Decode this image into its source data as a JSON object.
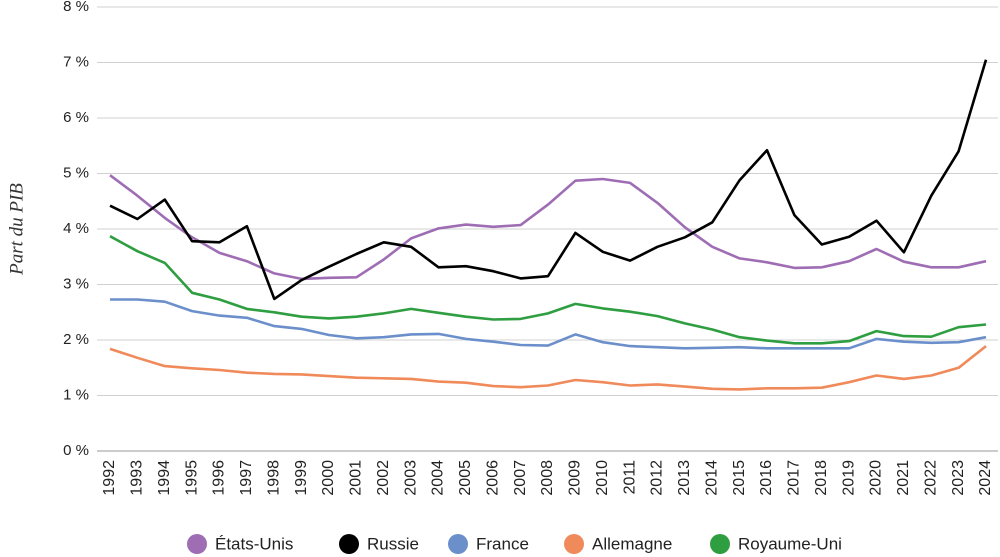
{
  "chart_data": {
    "type": "line",
    "y_label": "Part du PIB",
    "categories": [
      "1992",
      "1993",
      "1994",
      "1995",
      "1996",
      "1997",
      "1998",
      "1999",
      "2000",
      "2001",
      "2002",
      "2003",
      "2004",
      "2005",
      "2006",
      "2007",
      "2008",
      "2009",
      "2010",
      "2011",
      "2012",
      "2013",
      "2014",
      "2015",
      "2016",
      "2017",
      "2018",
      "2019",
      "2020",
      "2021",
      "2022",
      "2023",
      "2024"
    ],
    "ylim": [
      0,
      8
    ],
    "yticks": [
      {
        "value": 0,
        "label": "0 %"
      },
      {
        "value": 1,
        "label": "1 %"
      },
      {
        "value": 2,
        "label": "2 %"
      },
      {
        "value": 3,
        "label": "3 %"
      },
      {
        "value": 4,
        "label": "4 %"
      },
      {
        "value": 5,
        "label": "5 %"
      },
      {
        "value": 6,
        "label": "6 %"
      },
      {
        "value": 7,
        "label": "7 %"
      },
      {
        "value": 8,
        "label": "8 %"
      }
    ],
    "grid": true,
    "legend": "bottom",
    "series": [
      {
        "name": "États-Unis",
        "color": "#9e6db4",
        "values": [
          4.97,
          4.6,
          4.2,
          3.85,
          3.57,
          3.42,
          3.2,
          3.1,
          3.12,
          3.13,
          3.45,
          3.83,
          4.01,
          4.08,
          4.04,
          4.07,
          4.44,
          4.87,
          4.9,
          4.83,
          4.47,
          4.03,
          3.68,
          3.47,
          3.4,
          3.3,
          3.31,
          3.42,
          3.64,
          3.41,
          3.31,
          3.31,
          3.42
        ]
      },
      {
        "name": "Russie",
        "color": "#000000",
        "values": [
          4.42,
          4.18,
          4.53,
          3.78,
          3.76,
          4.05,
          2.74,
          3.08,
          3.32,
          3.55,
          3.76,
          3.68,
          3.31,
          3.33,
          3.24,
          3.11,
          3.15,
          3.93,
          3.59,
          3.43,
          3.68,
          3.85,
          4.12,
          4.88,
          5.42,
          4.25,
          3.72,
          3.86,
          4.15,
          3.58,
          4.6,
          5.4,
          7.05
        ]
      },
      {
        "name": "France",
        "color": "#6b8fcb",
        "values": [
          2.73,
          2.73,
          2.69,
          2.52,
          2.44,
          2.4,
          2.25,
          2.2,
          2.09,
          2.03,
          2.05,
          2.1,
          2.11,
          2.02,
          1.97,
          1.91,
          1.9,
          2.1,
          1.96,
          1.89,
          1.87,
          1.85,
          1.86,
          1.87,
          1.85,
          1.85,
          1.85,
          1.85,
          2.02,
          1.97,
          1.95,
          1.96,
          2.05
        ]
      },
      {
        "name": "Allemagne",
        "color": "#f08a5a",
        "values": [
          1.84,
          1.68,
          1.53,
          1.49,
          1.46,
          1.41,
          1.39,
          1.38,
          1.35,
          1.32,
          1.31,
          1.3,
          1.25,
          1.23,
          1.17,
          1.15,
          1.18,
          1.28,
          1.24,
          1.18,
          1.2,
          1.16,
          1.12,
          1.11,
          1.13,
          1.13,
          1.14,
          1.24,
          1.36,
          1.3,
          1.36,
          1.5,
          1.89
        ]
      },
      {
        "name": "Royaume-Uni",
        "color": "#2e9e40",
        "values": [
          3.87,
          3.6,
          3.39,
          2.85,
          2.73,
          2.56,
          2.5,
          2.42,
          2.39,
          2.42,
          2.48,
          2.56,
          2.49,
          2.42,
          2.37,
          2.38,
          2.48,
          2.65,
          2.57,
          2.51,
          2.43,
          2.3,
          2.19,
          2.05,
          1.99,
          1.94,
          1.94,
          1.98,
          2.16,
          2.07,
          2.06,
          2.23,
          2.28
        ]
      }
    ]
  }
}
